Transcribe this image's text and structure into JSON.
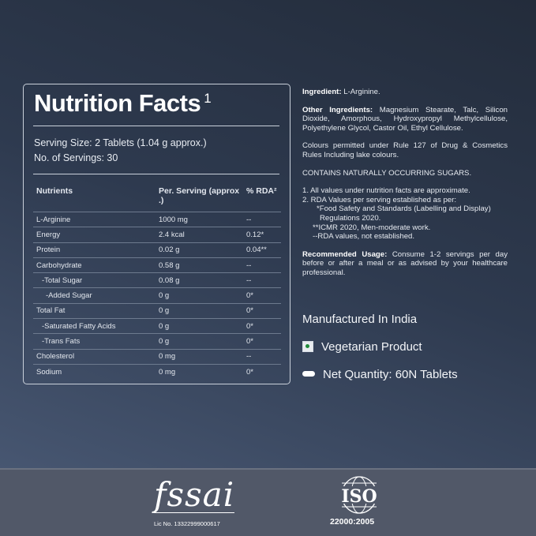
{
  "nutrition": {
    "title": "Nutrition Facts",
    "title_sup": "1",
    "serving_size": "Serving Size: 2 Tablets (1.04 g approx.)",
    "servings": "No. of Servings: 30",
    "headers": [
      "Nutrients",
      "Per. Serving (approx .)",
      "% RDA²"
    ],
    "rows": [
      [
        "L-Arginine",
        "1000 mg",
        "--"
      ],
      [
        "Energy",
        "2.4 kcal",
        "0.12*"
      ],
      [
        "Protein",
        "0.02 g",
        "0.04**"
      ],
      [
        "Carbohydrate",
        "0.58 g",
        "--"
      ],
      [
        "-Total Sugar",
        "0.08 g",
        "--"
      ],
      [
        "-Added Sugar",
        "0 g",
        "0*"
      ],
      [
        "Total Fat",
        "0 g",
        "0*"
      ],
      [
        "-Saturated Fatty Acids",
        "0 g",
        "0*"
      ],
      [
        "-Trans Fats",
        "0 g",
        "0*"
      ],
      [
        "Cholesterol",
        "0 mg",
        "--"
      ],
      [
        "Sodium",
        "0 mg",
        "0*"
      ]
    ]
  },
  "info": {
    "ingredient_label": "Ingredient:",
    "ingredient": " L-Arginine.",
    "other_label": "Other Ingredients:",
    "other": " Magnesium Stearate, Talc, Silicon Dioxide, Amorphous, Hydroxypropyl Methylcellulose, Polyethylene Glycol, Castor Oil, Ethyl Cellulose.",
    "colours": "Colours permitted under Rule 127 of Drug & Cosmetics Rules Including lake colours.",
    "sugars": "CONTAINS NATURALLY OCCURRING SUGARS.",
    "notes": [
      "1.  All values under nutrition facts  are approximate.",
      "2.  RDA Values per serving established as per:",
      "*Food Safety and Standards (Labelling and Display) Regulations 2020.",
      "**ICMR 2020, Men-moderate work.",
      "--RDA values, not established."
    ],
    "usage_label": "Recommended Usage:",
    "usage": " Consume 1-2 servings per day before or after a meal or as advised by your healthcare professional.",
    "manufactured": "Manufactured In India",
    "vegetarian": "Vegetarian Product",
    "net_quantity": "Net Quantity: 60N Tablets"
  },
  "footer": {
    "fssai_logo": "fssai",
    "lic": "Lic No. 13322999000617",
    "iso_logo": "ISO",
    "iso_std": "22000:2005"
  }
}
